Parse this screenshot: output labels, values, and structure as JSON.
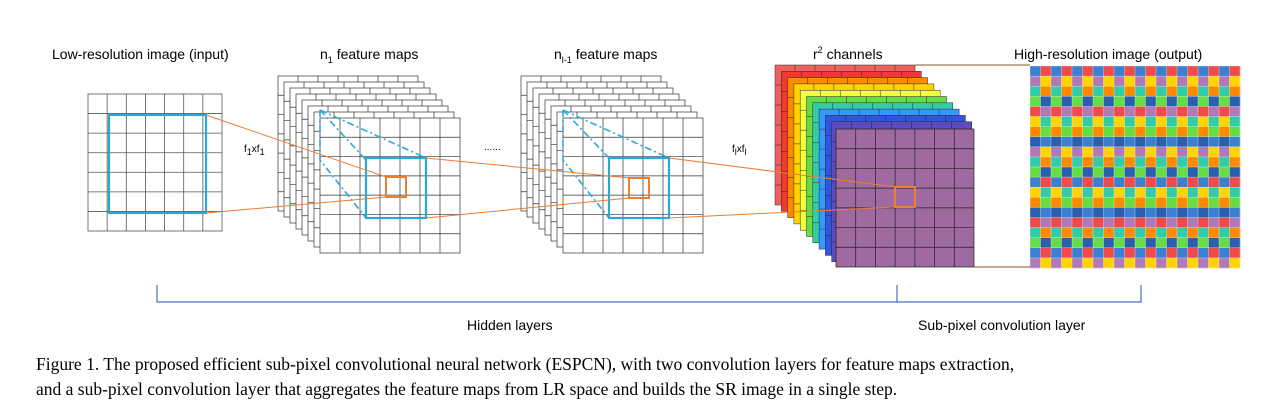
{
  "labels": {
    "input": "Low-resolution image (input)",
    "n1_prefix": "n",
    "n1_sub": "1",
    "n1_suffix": " feature maps",
    "nl_prefix": "n",
    "nl_sub": "l-1",
    "nl_suffix": " feature maps",
    "r2_prefix": "r",
    "r2_sup": "2",
    "r2_suffix": " channels",
    "output": "High-resolution image (output)",
    "k1_a": "f",
    "k1_a_sub": "1",
    "k1_b": "xf",
    "k1_b_sub": "1",
    "kl_a": "f",
    "kl_a_sub": "l",
    "kl_b": "xf",
    "kl_b_sub": "l",
    "dots": "......",
    "hidden": "Hidden layers",
    "subpixel": "Sub-pixel convolution layer"
  },
  "caption": {
    "line1": "Figure 1. The proposed efficient sub-pixel convolutional neural network (ESPCN), with two convolution layers for feature maps extraction,",
    "line2": "and a sub-pixel convolution layer that aggregates the feature maps from LR space and builds the SR image in a single step."
  },
  "colors": {
    "cyan": "#2aa8d8",
    "orange": "#ed7d31",
    "purple": "#9e6aa0",
    "channels": [
      "#f06060",
      "#f43a2a",
      "#ff8a00",
      "#ffd400",
      "#f0ff40",
      "#66dd44",
      "#33ccaa",
      "#3399ff",
      "#3355dd",
      "#5b4bbf"
    ],
    "hr_palette": [
      "#3a7fd0",
      "#f04a4a",
      "#b07ab8",
      "#ffd400",
      "#33ccaa",
      "#ff8a00",
      "#66dd44",
      "#2a5fb0"
    ]
  }
}
